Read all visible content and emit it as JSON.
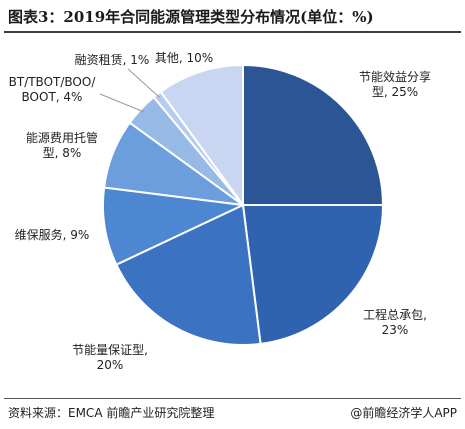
{
  "header": {
    "title": "图表3：2019年合同能源管理类型分布情况(单位：%)"
  },
  "footer": {
    "source": "资料来源：EMCA 前瞻产业研究院整理",
    "brand": "@前瞻经济学人APP"
  },
  "chart_data": {
    "type": "pie",
    "title": "图表3：2019年合同能源管理类型分布情况(单位：%)",
    "unit": "%",
    "slices": [
      {
        "label_lines": [
          "节能效益分享",
          "型, 25%"
        ],
        "name": "节能效益分享型",
        "value": 25,
        "color": "#2c5596"
      },
      {
        "label_lines": [
          "工程总承包,",
          "23%"
        ],
        "name": "工程总承包",
        "value": 23,
        "color": "#2f63b0"
      },
      {
        "label_lines": [
          "节能量保证型,",
          "20%"
        ],
        "name": "节能量保证型",
        "value": 20,
        "color": "#3b73c2"
      },
      {
        "label_lines": [
          "维保服务, 9%"
        ],
        "name": "维保服务",
        "value": 9,
        "color": "#4d86d1"
      },
      {
        "label_lines": [
          "能源费用托管",
          "型, 8%"
        ],
        "name": "能源费用托管型",
        "value": 8,
        "color": "#6c9ddc"
      },
      {
        "label_lines": [
          "BT/TBOT/BOO/",
          "BOOT, 4%"
        ],
        "name": "BT/TBOT/BOO/BOOT",
        "value": 4,
        "color": "#97b9e6"
      },
      {
        "label_lines": [
          "融资租赁, 1%"
        ],
        "name": "融资租赁",
        "value": 1,
        "color": "#b7cdef"
      },
      {
        "label_lines": [
          "其他, 10%"
        ],
        "name": "其他",
        "value": 10,
        "color": "#c8d6f2"
      }
    ]
  }
}
